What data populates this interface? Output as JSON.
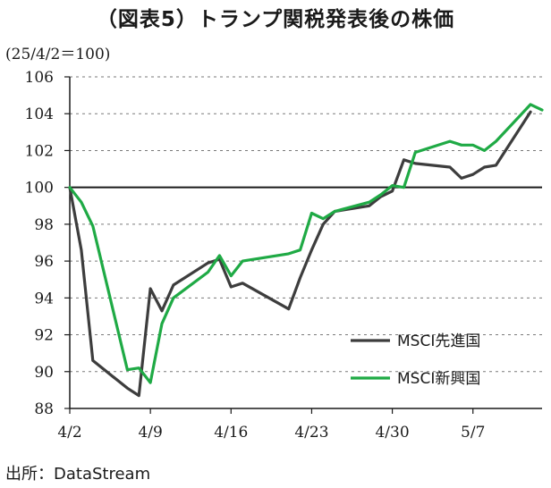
{
  "header": {
    "title": "（図表5）トランプ関税発表後の株価",
    "base_note": "(25/4/2＝100)"
  },
  "footer": {
    "source": "出所：DataStream"
  },
  "chart_data": {
    "type": "line",
    "title": "（図表5）トランプ関税発表後の株価",
    "xlabel": "",
    "ylabel": "",
    "ylim": [
      88,
      106
    ],
    "yticks": [
      88,
      90,
      92,
      94,
      96,
      98,
      100,
      102,
      104,
      106
    ],
    "xlim": [
      "2025-04-02",
      "2025-05-13"
    ],
    "xticks": [
      {
        "label": "4/2",
        "date": "2025-04-02"
      },
      {
        "label": "4/9",
        "date": "2025-04-09"
      },
      {
        "label": "4/16",
        "date": "2025-04-16"
      },
      {
        "label": "4/23",
        "date": "2025-04-23"
      },
      {
        "label": "4/30",
        "date": "2025-04-30"
      },
      {
        "label": "5/7",
        "date": "2025-05-07"
      }
    ],
    "grid": "horizontal dashed",
    "reference_line": 100,
    "legend_position": "bottom-right",
    "series": [
      {
        "name": "MSCI先進国",
        "color": "#3d3d3d",
        "points": [
          [
            "2025-04-02",
            100.0
          ],
          [
            "2025-04-03",
            96.6
          ],
          [
            "2025-04-04",
            90.6
          ],
          [
            "2025-04-07",
            89.1
          ],
          [
            "2025-04-08",
            88.7
          ],
          [
            "2025-04-09",
            94.5
          ],
          [
            "2025-04-10",
            93.3
          ],
          [
            "2025-04-11",
            94.7
          ],
          [
            "2025-04-14",
            95.9
          ],
          [
            "2025-04-15",
            96.1
          ],
          [
            "2025-04-16",
            94.6
          ],
          [
            "2025-04-17",
            94.8
          ],
          [
            "2025-04-21",
            93.4
          ],
          [
            "2025-04-22",
            95.1
          ],
          [
            "2025-04-23",
            96.6
          ],
          [
            "2025-04-24",
            98.0
          ],
          [
            "2025-04-25",
            98.7
          ],
          [
            "2025-04-28",
            99.0
          ],
          [
            "2025-04-29",
            99.5
          ],
          [
            "2025-04-30",
            99.8
          ],
          [
            "2025-05-01",
            101.5
          ],
          [
            "2025-05-02",
            101.3
          ],
          [
            "2025-05-05",
            101.1
          ],
          [
            "2025-05-06",
            100.5
          ],
          [
            "2025-05-07",
            100.7
          ],
          [
            "2025-05-08",
            101.1
          ],
          [
            "2025-05-09",
            101.2
          ],
          [
            "2025-05-12",
            104.1
          ]
        ]
      },
      {
        "name": "MSCI新興国",
        "color": "#1faa45",
        "points": [
          [
            "2025-04-02",
            100.0
          ],
          [
            "2025-04-03",
            99.2
          ],
          [
            "2025-04-04",
            97.9
          ],
          [
            "2025-04-07",
            90.1
          ],
          [
            "2025-04-08",
            90.2
          ],
          [
            "2025-04-09",
            89.4
          ],
          [
            "2025-04-10",
            92.6
          ],
          [
            "2025-04-11",
            94.0
          ],
          [
            "2025-04-14",
            95.4
          ],
          [
            "2025-04-15",
            96.3
          ],
          [
            "2025-04-16",
            95.2
          ],
          [
            "2025-04-17",
            96.0
          ],
          [
            "2025-04-21",
            96.4
          ],
          [
            "2025-04-22",
            96.6
          ],
          [
            "2025-04-23",
            98.6
          ],
          [
            "2025-04-24",
            98.3
          ],
          [
            "2025-04-25",
            98.7
          ],
          [
            "2025-04-28",
            99.2
          ],
          [
            "2025-04-29",
            99.6
          ],
          [
            "2025-04-30",
            100.1
          ],
          [
            "2025-05-01",
            100.0
          ],
          [
            "2025-05-02",
            101.9
          ],
          [
            "2025-05-05",
            102.5
          ],
          [
            "2025-05-06",
            102.3
          ],
          [
            "2025-05-07",
            102.3
          ],
          [
            "2025-05-08",
            102.0
          ],
          [
            "2025-05-09",
            102.5
          ],
          [
            "2025-05-12",
            104.5
          ],
          [
            "2025-05-13",
            104.2
          ]
        ]
      }
    ]
  }
}
